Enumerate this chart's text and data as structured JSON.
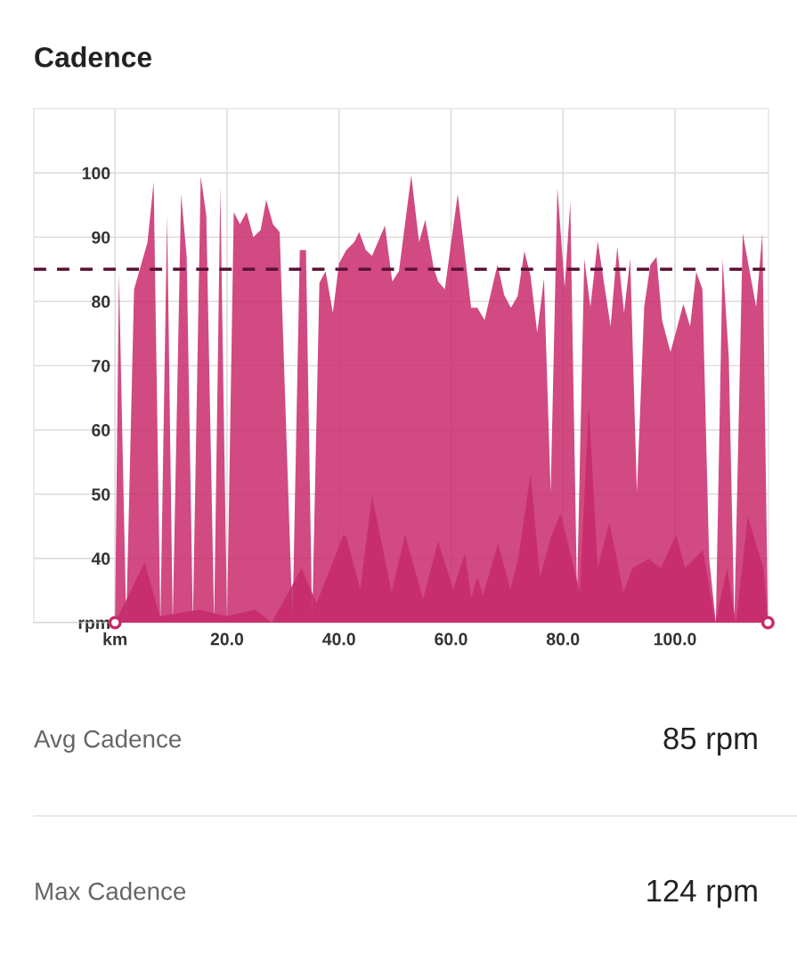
{
  "chart_data": {
    "type": "area",
    "title": "Cadence",
    "xlim": [
      -14.5,
      116.7
    ],
    "ylim": [
      30,
      110
    ],
    "xticks": [
      {
        "value": 0,
        "label": "km"
      },
      {
        "value": 20,
        "label": "20.0"
      },
      {
        "value": 40,
        "label": "40.0"
      },
      {
        "value": 60,
        "label": "60.0"
      },
      {
        "value": 80,
        "label": "80.0"
      },
      {
        "value": 100,
        "label": "100.0"
      }
    ],
    "yticks": [
      {
        "value": 30,
        "label": "rpm"
      },
      40,
      50,
      60,
      70,
      80,
      90,
      100
    ],
    "grid": true,
    "series": [
      {
        "color": "#c92a6b",
        "x": [
          0,
          0.7,
          2.0,
          3.4,
          5.8,
          6.9,
          8.1,
          9.3,
          10.3,
          11.8,
          12.8,
          13.9,
          15.3,
          16.3,
          17.7,
          18.8,
          20.0,
          21.2,
          22.3,
          23.5,
          24.7,
          26.0,
          27.0,
          28.2,
          29.4,
          31.7,
          33.0,
          34.1,
          35.2,
          36.5,
          37.6,
          38.9,
          40.0,
          41.3,
          42.7,
          43.6,
          44.8,
          45.9,
          48.2,
          49.5,
          50.7,
          52.9,
          54.3,
          55.4,
          56.9,
          57.7,
          58.9,
          61.2,
          63.6,
          64.7,
          66.0,
          68.3,
          69.5,
          70.7,
          71.9,
          73.1,
          74.2,
          75.4,
          76.6,
          77.8,
          79.0,
          80.3,
          81.3,
          82.5,
          83.8,
          84.9,
          86.2,
          88.5,
          89.7,
          90.9,
          92.0,
          93.2,
          94.5,
          95.6,
          96.7,
          97.7,
          99.2,
          101.5,
          102.7,
          103.8,
          104.9,
          106.1,
          107.3,
          108.5,
          109.6,
          110.6,
          112.1,
          114.5,
          115.6,
          116.6
        ],
        "values": [
          30,
          84.5,
          30,
          81.9,
          89.2,
          98.6,
          30,
          93.4,
          30,
          96.7,
          86.9,
          30,
          99.5,
          93.4,
          30,
          97.7,
          30,
          93.9,
          92.0,
          93.9,
          90,
          91.1,
          95.8,
          92.0,
          90.8,
          30,
          88.0,
          88.0,
          30,
          82.9,
          84.7,
          78.2,
          85.9,
          88.0,
          89.2,
          90.8,
          88.0,
          87.1,
          91.8,
          83.1,
          84.7,
          99.6,
          89.2,
          92.7,
          85.2,
          83.1,
          81.9,
          96.7,
          79.0,
          79.0,
          77.1,
          85.7,
          81.0,
          79.0,
          80.8,
          87.8,
          84.0,
          75.1,
          83.6,
          50.2,
          97.7,
          82.2,
          95.5,
          34.3,
          86.6,
          79.1,
          89.4,
          76.1,
          88.5,
          78.2,
          86.6,
          50.2,
          79.1,
          85.7,
          86.9,
          77.0,
          72.1,
          79.6,
          76.1,
          84.6,
          81.9,
          39.9,
          30,
          86.6,
          71.4,
          30,
          90.6,
          79.1,
          90.6,
          30
        ]
      },
      {
        "color": "#b42763",
        "x": [
          0,
          5.3,
          8.0,
          15.0,
          20.0,
          25.0,
          28.0,
          33.3,
          36.0,
          40.8,
          41.3,
          43.8,
          45.9,
          49.4,
          51.8,
          55.0,
          57.7,
          60.4,
          62.5,
          63.6,
          64.7,
          65.7,
          68.4,
          70.6,
          72.0,
          74.2,
          75.9,
          77.8,
          79.6,
          83.0,
          84.6,
          86.2,
          88.3,
          90.8,
          92.4,
          95.3,
          97.5,
          100.2,
          101.8,
          105.0,
          107.2,
          109.3,
          110.9,
          113.0,
          115.8,
          116.6
        ],
        "values": [
          30,
          39.4,
          31,
          32,
          31,
          32,
          30,
          38.5,
          33,
          43.7,
          43.4,
          35.2,
          49.8,
          34.7,
          43.7,
          33.6,
          42.7,
          35.2,
          40.8,
          33.8,
          37.1,
          34.3,
          42.3,
          35.2,
          39.9,
          53.1,
          37.1,
          43.2,
          47.0,
          34.7,
          64.0,
          38.5,
          45.6,
          34.7,
          38.5,
          39.9,
          38.5,
          43.7,
          38.5,
          41.3,
          30,
          38.5,
          30,
          46.5,
          38.5,
          30
        ]
      }
    ],
    "ref_lines": [
      {
        "axis": "y",
        "value": 85,
        "label": null,
        "color": "#5a1236",
        "line_style": "dashed"
      }
    ],
    "annotations": [
      "Avg Cadence",
      "85 rpm",
      "Max Cadence",
      "124 rpm"
    ]
  }
}
